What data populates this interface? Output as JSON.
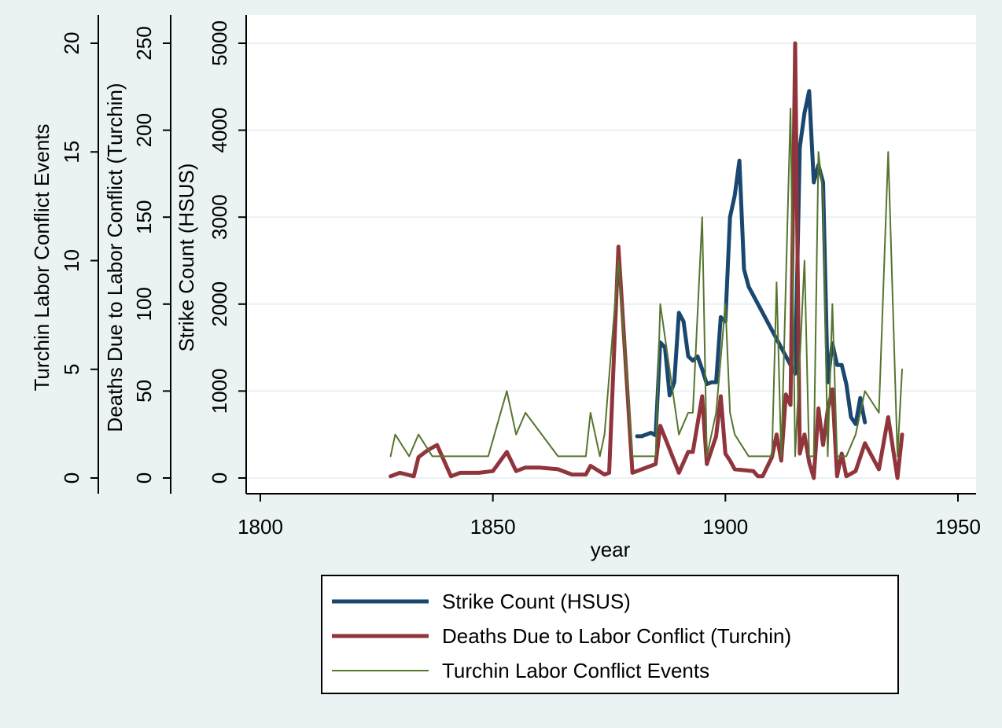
{
  "chart_data": {
    "type": "line",
    "xlabel": "year",
    "x_ticks": [
      1800,
      1850,
      1900,
      1950
    ],
    "xlim": [
      1797,
      1952
    ],
    "grid": true,
    "legend_position": "bottom",
    "y_axes": [
      {
        "id": "events",
        "label": "Turchin Labor Conflict Events",
        "ticks": [
          0,
          5,
          10,
          15,
          20
        ],
        "range": [
          0,
          20
        ]
      },
      {
        "id": "deaths",
        "label": "Deaths Due to Labor Conflict (Turchin)",
        "ticks": [
          0,
          50,
          100,
          150,
          200,
          250
        ],
        "range": [
          0,
          250
        ]
      },
      {
        "id": "strikes",
        "label": "Strike Count (HSUS)",
        "ticks": [
          0,
          1000,
          2000,
          3000,
          4000,
          5000
        ],
        "range": [
          0,
          5000
        ]
      }
    ],
    "series": [
      {
        "name": "Strike Count (HSUS)",
        "axis": "strikes",
        "color": "#1a476f",
        "points": [
          [
            1881,
            480
          ],
          [
            1882,
            480
          ],
          [
            1883,
            500
          ],
          [
            1884,
            520
          ],
          [
            1885,
            490
          ],
          [
            1886,
            1560
          ],
          [
            1887,
            1500
          ],
          [
            1888,
            950
          ],
          [
            1889,
            1100
          ],
          [
            1890,
            1900
          ],
          [
            1891,
            1800
          ],
          [
            1892,
            1400
          ],
          [
            1893,
            1350
          ],
          [
            1894,
            1400
          ],
          [
            1895,
            1250
          ],
          [
            1896,
            1080
          ],
          [
            1897,
            1100
          ],
          [
            1898,
            1100
          ],
          [
            1899,
            1850
          ],
          [
            1900,
            1800
          ],
          [
            1901,
            3000
          ],
          [
            1902,
            3250
          ],
          [
            1903,
            3650
          ],
          [
            1904,
            2400
          ],
          [
            1905,
            2200
          ],
          [
            1906,
            2100
          ],
          [
            1914,
            1300
          ],
          [
            1915,
            1200
          ],
          [
            1916,
            3800
          ],
          [
            1917,
            4200
          ],
          [
            1918,
            4450
          ],
          [
            1919,
            3400
          ],
          [
            1920,
            3600
          ],
          [
            1921,
            3400
          ],
          [
            1922,
            1100
          ],
          [
            1923,
            1550
          ],
          [
            1924,
            1300
          ],
          [
            1925,
            1300
          ],
          [
            1926,
            1080
          ],
          [
            1927,
            700
          ],
          [
            1928,
            620
          ],
          [
            1929,
            920
          ],
          [
            1930,
            640
          ]
        ]
      },
      {
        "name": "Deaths Due to Labor Conflict (Turchin)",
        "axis": "deaths",
        "color": "#90353b",
        "points": [
          [
            1828,
            1
          ],
          [
            1830,
            3
          ],
          [
            1833,
            1
          ],
          [
            1834,
            12
          ],
          [
            1836,
            16
          ],
          [
            1838,
            19
          ],
          [
            1841,
            1
          ],
          [
            1843,
            3
          ],
          [
            1847,
            3
          ],
          [
            1850,
            4
          ],
          [
            1853,
            15
          ],
          [
            1855,
            4
          ],
          [
            1857,
            6
          ],
          [
            1860,
            6
          ],
          [
            1864,
            5
          ],
          [
            1867,
            2
          ],
          [
            1870,
            2
          ],
          [
            1871,
            7
          ],
          [
            1874,
            2
          ],
          [
            1875,
            3
          ],
          [
            1877,
            133
          ],
          [
            1880,
            3
          ],
          [
            1885,
            8
          ],
          [
            1886,
            30
          ],
          [
            1890,
            3
          ],
          [
            1892,
            15
          ],
          [
            1893,
            15
          ],
          [
            1895,
            47
          ],
          [
            1896,
            8
          ],
          [
            1898,
            24
          ],
          [
            1899,
            47
          ],
          [
            1900,
            14
          ],
          [
            1901,
            10
          ],
          [
            1902,
            5
          ],
          [
            1906,
            4
          ],
          [
            1907,
            1
          ],
          [
            1908,
            1
          ],
          [
            1910,
            12
          ],
          [
            1911,
            25
          ],
          [
            1912,
            10
          ],
          [
            1913,
            48
          ],
          [
            1914,
            42
          ],
          [
            1915,
            250
          ],
          [
            1916,
            14
          ],
          [
            1917,
            25
          ],
          [
            1918,
            9
          ],
          [
            1919,
            0
          ],
          [
            1920,
            40
          ],
          [
            1921,
            19
          ],
          [
            1922,
            39
          ],
          [
            1923,
            51
          ],
          [
            1924,
            1
          ],
          [
            1925,
            14
          ],
          [
            1926,
            1
          ],
          [
            1928,
            4
          ],
          [
            1930,
            20
          ],
          [
            1933,
            5
          ],
          [
            1935,
            35
          ],
          [
            1937,
            0
          ],
          [
            1938,
            25
          ]
        ]
      },
      {
        "name": "Turchin Labor Conflict Events",
        "axis": "events",
        "color": "#55752f",
        "points": [
          [
            1828,
            1
          ],
          [
            1829,
            2
          ],
          [
            1832,
            1
          ],
          [
            1834,
            2
          ],
          [
            1837,
            1
          ],
          [
            1849,
            1
          ],
          [
            1853,
            4
          ],
          [
            1855,
            2
          ],
          [
            1857,
            3
          ],
          [
            1864,
            1
          ],
          [
            1870,
            1
          ],
          [
            1871,
            3
          ],
          [
            1873,
            1
          ],
          [
            1874,
            2
          ],
          [
            1877,
            10
          ],
          [
            1880,
            1
          ],
          [
            1885,
            1
          ],
          [
            1886,
            8
          ],
          [
            1890,
            2
          ],
          [
            1892,
            3
          ],
          [
            1893,
            3
          ],
          [
            1895,
            12
          ],
          [
            1896,
            1
          ],
          [
            1898,
            3
          ],
          [
            1900,
            8
          ],
          [
            1901,
            3
          ],
          [
            1902,
            2
          ],
          [
            1905,
            1
          ],
          [
            1906,
            1
          ],
          [
            1910,
            1
          ],
          [
            1911,
            9
          ],
          [
            1912,
            1
          ],
          [
            1914,
            17
          ],
          [
            1915,
            1
          ],
          [
            1917,
            10
          ],
          [
            1918,
            1
          ],
          [
            1919,
            1
          ],
          [
            1920,
            15
          ],
          [
            1921,
            13
          ],
          [
            1922,
            1
          ],
          [
            1923,
            8
          ],
          [
            1924,
            1
          ],
          [
            1925,
            1
          ],
          [
            1926,
            1
          ],
          [
            1928,
            2
          ],
          [
            1930,
            4
          ],
          [
            1933,
            3
          ],
          [
            1935,
            15
          ],
          [
            1937,
            1
          ],
          [
            1938,
            5
          ]
        ]
      }
    ]
  }
}
